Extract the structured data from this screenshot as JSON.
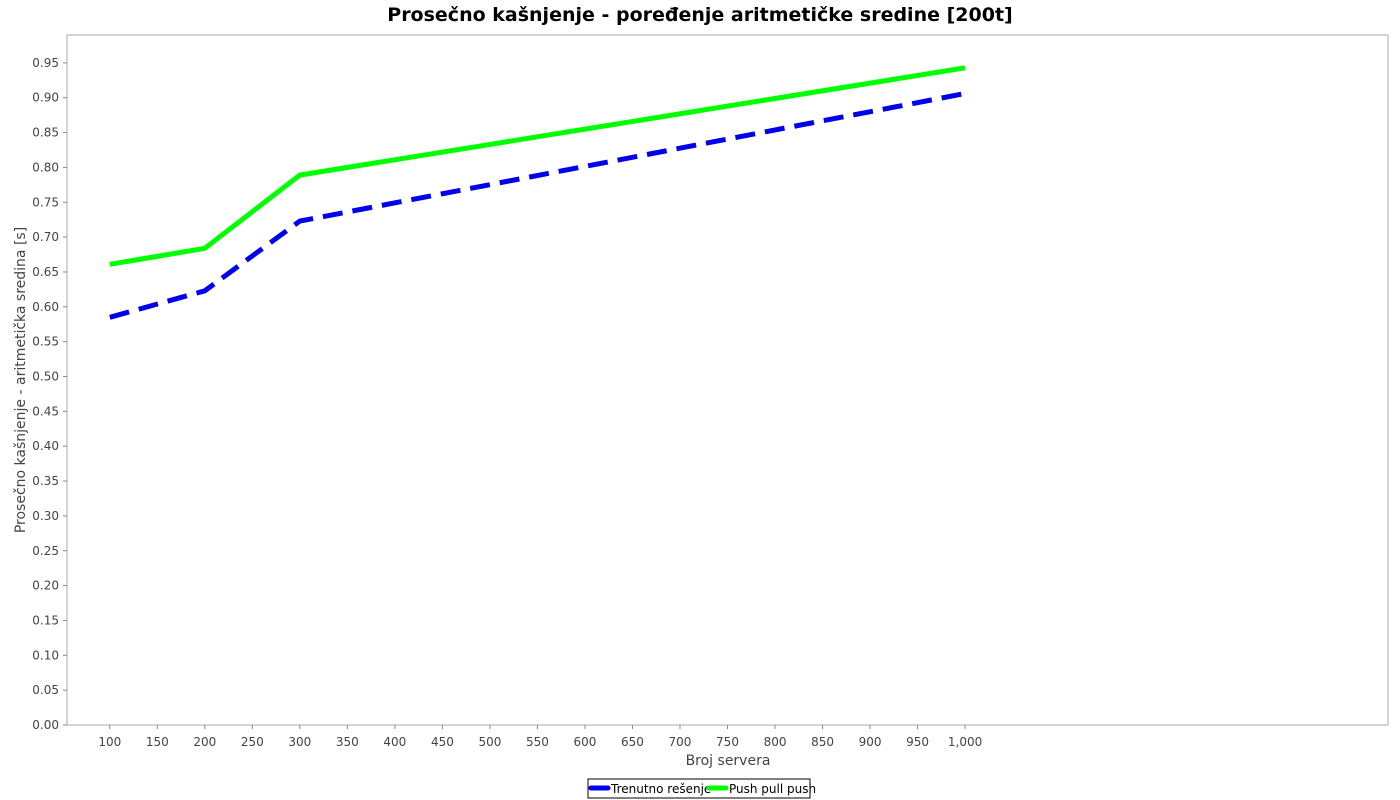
{
  "chart_data": {
    "type": "line",
    "title": "Prosečno kašnjenje - poređenje aritmetičke sredine [200t]",
    "xlabel": "Broj servera",
    "ylabel": "Prosečno kašnjenje - aritmetička sredina [s]",
    "xlim": [
      55,
      1445
    ],
    "ylim": [
      0,
      0.99
    ],
    "x_ticks": [
      100,
      150,
      200,
      250,
      300,
      350,
      400,
      450,
      500,
      550,
      600,
      650,
      700,
      750,
      800,
      850,
      900,
      950,
      1000
    ],
    "x_tick_labels": [
      "100",
      "150",
      "200",
      "250",
      "300",
      "350",
      "400",
      "450",
      "500",
      "550",
      "600",
      "650",
      "700",
      "750",
      "800",
      "850",
      "900",
      "950",
      "1,000"
    ],
    "y_ticks": [
      0.0,
      0.05,
      0.1,
      0.15,
      0.2,
      0.25,
      0.3,
      0.35,
      0.4,
      0.45,
      0.5,
      0.55,
      0.6,
      0.65,
      0.7,
      0.75,
      0.8,
      0.85,
      0.9,
      0.95
    ],
    "y_tick_labels": [
      "0.00",
      "0.05",
      "0.10",
      "0.15",
      "0.20",
      "0.25",
      "0.30",
      "0.35",
      "0.40",
      "0.45",
      "0.50",
      "0.55",
      "0.60",
      "0.65",
      "0.70",
      "0.75",
      "0.80",
      "0.85",
      "0.90",
      "0.95"
    ],
    "x": [
      100,
      200,
      300,
      1000
    ],
    "series": [
      {
        "name": "Trenutno rešenje",
        "values": [
          0.585,
          0.623,
          0.723,
          0.906
        ],
        "color": "#0000ee",
        "style": "dashed"
      },
      {
        "name": "Push pull push",
        "values": [
          0.661,
          0.684,
          0.789,
          0.943
        ],
        "color": "#00ff00",
        "style": "solid"
      }
    ],
    "grid": false,
    "legend_position": "bottom-center"
  }
}
